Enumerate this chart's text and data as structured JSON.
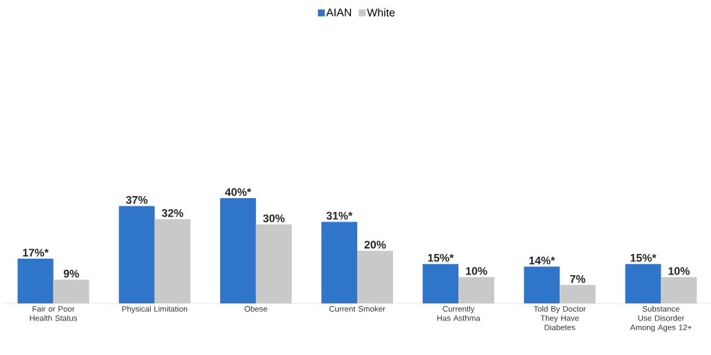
{
  "chart_data": {
    "type": "bar",
    "categories": [
      "Fair or Poor Health Status",
      "Physical Limitation",
      "Obese",
      "Current Smoker",
      "Currently Has Asthma",
      "Told By Doctor They Have Diabetes",
      "Substance Use Disorder Among Ages 12+"
    ],
    "series": [
      {
        "name": "AIAN",
        "color": "#2f75c9",
        "values": [
          17,
          37,
          40,
          31,
          15,
          14,
          15
        ],
        "value_labels": [
          "17%*",
          "37%",
          "40%*",
          "31%*",
          "15%*",
          "14%*",
          "15%*"
        ]
      },
      {
        "name": "White",
        "color": "#c9c9c9",
        "values": [
          9,
          32,
          30,
          20,
          10,
          7,
          10
        ],
        "value_labels": [
          "9%",
          "32%",
          "30%",
          "20%",
          "10%",
          "7%",
          "10%"
        ]
      }
    ],
    "legend": "top"
  }
}
